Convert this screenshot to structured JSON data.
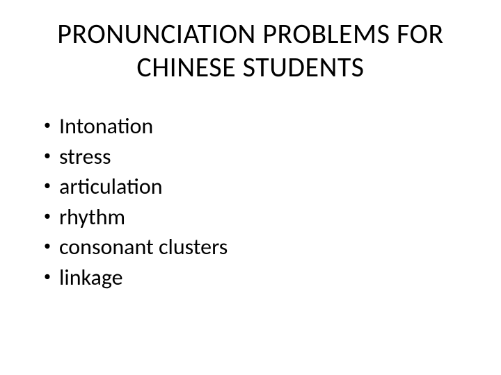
{
  "slide": {
    "title_line1": "PRONUNCIATION PROBLEMS FOR",
    "title_line2": "CHINESE STUDENTS",
    "bullets": [
      "Intonation",
      "stress",
      "articulation",
      "rhythm",
      "consonant clusters",
      "linkage"
    ]
  },
  "style": {
    "background_color": "#ffffff",
    "text_color": "#000000",
    "title_fontsize": 40,
    "bullet_fontsize": 32,
    "font_family": "Calibri"
  }
}
